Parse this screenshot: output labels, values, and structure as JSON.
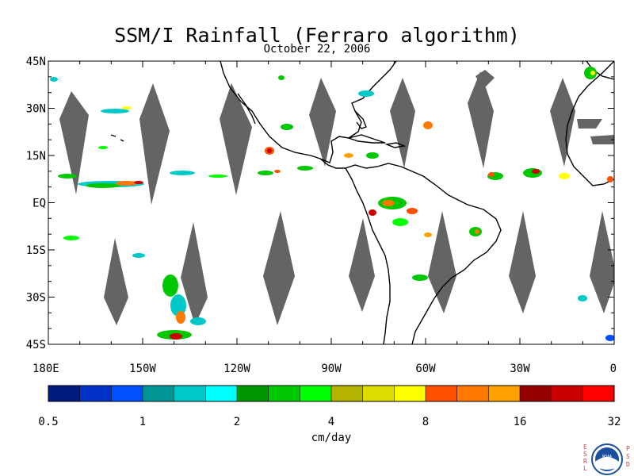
{
  "header": {
    "title": "SSM/I Rainfall (Ferraro algorithm)",
    "date": "October 22, 2006"
  },
  "map": {
    "lon_range": [
      180,
      360
    ],
    "lat_range": [
      -45,
      45
    ],
    "lat_labels": [
      "45N",
      "30N",
      "15N",
      "EQ",
      "15S",
      "30S",
      "45S"
    ],
    "lon_labels": [
      "180E",
      "150W",
      "120W",
      "90W",
      "60W",
      "30W",
      "0"
    ],
    "no_data_color": "#646464",
    "coast_color": "#000000"
  },
  "colorbar": {
    "unit_label": "cm/day",
    "tick_labels": [
      "0.5",
      "1",
      "2",
      "4",
      "8",
      "16",
      "32"
    ],
    "colors": [
      "#001c80",
      "#0032c8",
      "#0050ff",
      "#009696",
      "#00c8c8",
      "#00ffff",
      "#009600",
      "#00c800",
      "#00ff00",
      "#b4b400",
      "#dcdc00",
      "#ffff00",
      "#ff5000",
      "#ff7800",
      "#ffa000",
      "#960000",
      "#c80000",
      "#ff0000"
    ]
  },
  "logo": {
    "text": "NOAA",
    "left_letters": [
      "E",
      "S",
      "R",
      "L"
    ],
    "right_letters": [
      "P",
      "S",
      "D"
    ],
    "left_color": "#d04040",
    "right_color": "#d04040",
    "ring_color": "#1a4fa0"
  }
}
